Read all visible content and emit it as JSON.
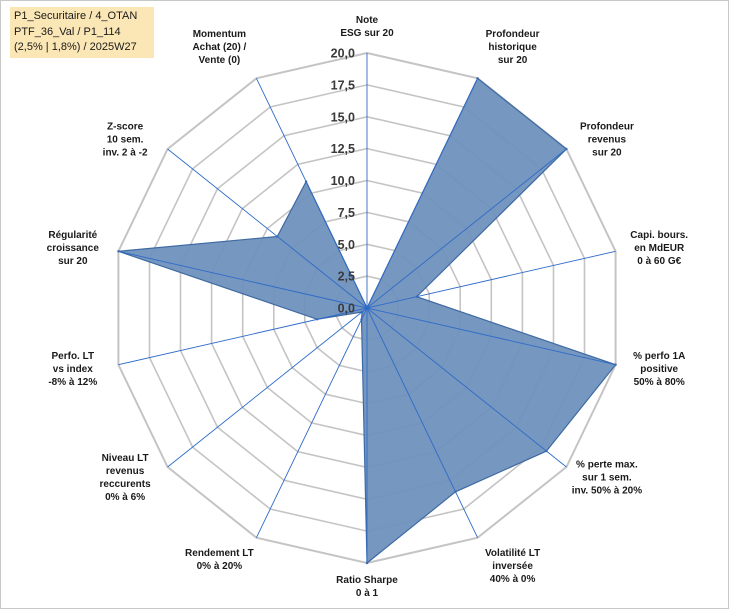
{
  "header": {
    "line1": "P1_Securitaire / 4_OTAN",
    "line2": "PTF_36_Val / P1_114",
    "line3": "(2,5% | 1,8%) / 2025W27"
  },
  "chart_data": {
    "type": "radar",
    "rmin": 0,
    "rmax": 20,
    "ticks": [
      "0,0",
      "2,5",
      "5,0",
      "7,5",
      "10,0",
      "12,5",
      "15,0",
      "17,5",
      "20,0"
    ],
    "categories": [
      [
        "Note",
        "ESG sur 20"
      ],
      [
        "Profondeur",
        "historique",
        "sur 20"
      ],
      [
        "Profondeur",
        "revenus",
        "sur 20"
      ],
      [
        "Capi. bours.",
        "en MdEUR",
        "0 à 60 G€"
      ],
      [
        "% perfo 1A",
        "positive",
        "50% à 80%"
      ],
      [
        "% perte max.",
        "sur 1 sem.",
        "inv. 50% à 20%"
      ],
      [
        "Volatilité LT",
        "inversée",
        "40% à 0%"
      ],
      [
        "Ratio Sharpe",
        "0 à 1"
      ],
      [
        "Rendement LT",
        "0% à 20%"
      ],
      [
        "Niveau LT",
        "revenus",
        "reccurents",
        "0% à 6%"
      ],
      [
        "Perfo. LT",
        "vs index",
        "-8% à 12%"
      ],
      [
        "Régularité",
        "croissance",
        "sur 20"
      ],
      [
        "Z-score",
        "10 sem.",
        "inv. 2 à -2"
      ],
      [
        "Momentum",
        "Achat (20) /",
        "Vente (0)"
      ]
    ],
    "series": [
      {
        "values": [
          0.0,
          20.0,
          20.0,
          4.0,
          20.0,
          18.0,
          16.0,
          20.0,
          1.0,
          0.5,
          4.0,
          20.0,
          9.0,
          11.0
        ],
        "fill": "#6f91bd",
        "stroke": "#3e6aa3"
      }
    ],
    "grid": true,
    "grid_color": "#c4c4c4",
    "spoke_color": "#2f6bc8"
  }
}
